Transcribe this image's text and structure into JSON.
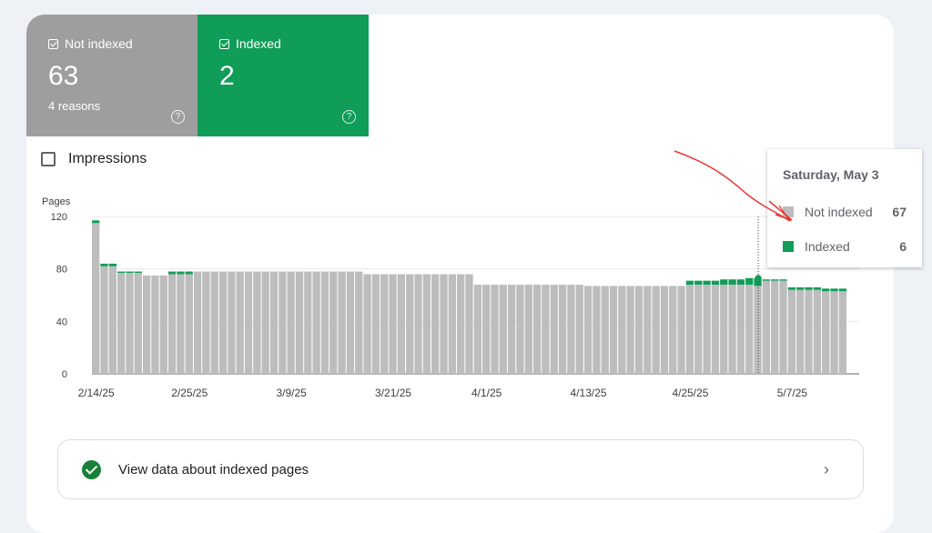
{
  "tiles": {
    "not_indexed": {
      "label": "Not indexed",
      "value": "63",
      "sub": "4 reasons",
      "color": "#9e9e9e",
      "help": "?"
    },
    "indexed": {
      "label": "Indexed",
      "value": "2",
      "color": "#0f9d58",
      "help": "?"
    }
  },
  "impressions": {
    "label": "Impressions",
    "checked": false
  },
  "tooltip": {
    "date": "Saturday, May 3",
    "rows": [
      {
        "label": "Not indexed",
        "value": "67",
        "color": "#bdbdbd"
      },
      {
        "label": "Indexed",
        "value": "6",
        "color": "#0f9d58"
      }
    ]
  },
  "view_link": {
    "label": "View data about indexed pages",
    "chevron": "›",
    "icon": "check-circle-icon"
  },
  "chart_data": {
    "type": "bar",
    "stacked": true,
    "ylabel": "Pages",
    "ylim": [
      0,
      120
    ],
    "yticks": [
      0,
      40,
      80,
      120
    ],
    "grid": true,
    "xtick_labels": [
      "2/14/25",
      "2/25/25",
      "3/9/25",
      "3/21/25",
      "4/1/25",
      "4/13/25",
      "4/25/25",
      "5/7/25"
    ],
    "xtick_indices": [
      0,
      11,
      23,
      35,
      46,
      58,
      70,
      82
    ],
    "highlight_index": 78,
    "series": [
      {
        "name": "Not indexed",
        "color": "#bdbdbd",
        "values": [
          115,
          82,
          82,
          77,
          77,
          77,
          75,
          75,
          75,
          76,
          76,
          76,
          78,
          78,
          78,
          78,
          78,
          78,
          78,
          78,
          78,
          78,
          78,
          78,
          78,
          78,
          78,
          78,
          78,
          78,
          78,
          78,
          76,
          76,
          76,
          76,
          76,
          76,
          76,
          76,
          76,
          76,
          76,
          76,
          76,
          68,
          68,
          68,
          68,
          68,
          68,
          68,
          68,
          68,
          68,
          68,
          68,
          68,
          67,
          67,
          67,
          67,
          67,
          67,
          67,
          67,
          67,
          67,
          67,
          67,
          68,
          68,
          68,
          68,
          68,
          68,
          68,
          68,
          67,
          71,
          71,
          71,
          64,
          64,
          64,
          64,
          63,
          63,
          63
        ]
      },
      {
        "name": "Indexed",
        "color": "#0f9d58",
        "values": [
          2,
          2,
          2,
          1,
          1,
          1,
          0,
          0,
          0,
          2,
          2,
          2,
          0,
          0,
          0,
          0,
          0,
          0,
          0,
          0,
          0,
          0,
          0,
          0,
          0,
          0,
          0,
          0,
          0,
          0,
          0,
          0,
          0,
          0,
          0,
          0,
          0,
          0,
          0,
          0,
          0,
          0,
          0,
          0,
          0,
          0,
          0,
          0,
          0,
          0,
          0,
          0,
          0,
          0,
          0,
          0,
          0,
          0,
          0,
          0,
          0,
          0,
          0,
          0,
          0,
          0,
          0,
          0,
          0,
          0,
          3,
          3,
          3,
          3,
          4,
          4,
          4,
          5,
          6,
          1,
          1,
          1,
          2,
          2,
          2,
          2,
          2,
          2,
          2
        ]
      }
    ]
  }
}
